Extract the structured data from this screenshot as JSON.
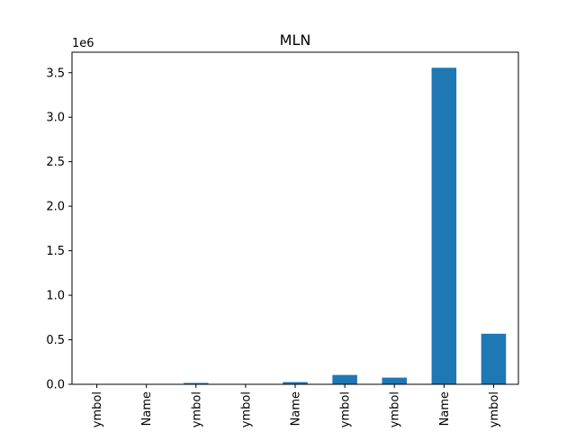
{
  "chart_data": {
    "type": "bar",
    "title": "MLN",
    "xlabel": "",
    "ylabel": "",
    "y_offset_label": "1e6",
    "ylim": [
      0,
      3730000
    ],
    "yticks": [
      0,
      500000,
      1000000,
      1500000,
      2000000,
      2500000,
      3000000,
      3500000
    ],
    "ytick_labels": [
      "0.0",
      "0.5",
      "1.0",
      "1.5",
      "2.0",
      "2.5",
      "3.0",
      "3.5"
    ],
    "categories": [
      "ymbol",
      "Name",
      "ymbol",
      "ymbol",
      "Name",
      "ymbol",
      "ymbol",
      "Name",
      "ymbol"
    ],
    "values": [
      0,
      0,
      15000,
      0,
      25000,
      105000,
      75000,
      3555000,
      568000
    ],
    "bar_color": "#1f77b4",
    "grid": false,
    "legend": "none"
  }
}
